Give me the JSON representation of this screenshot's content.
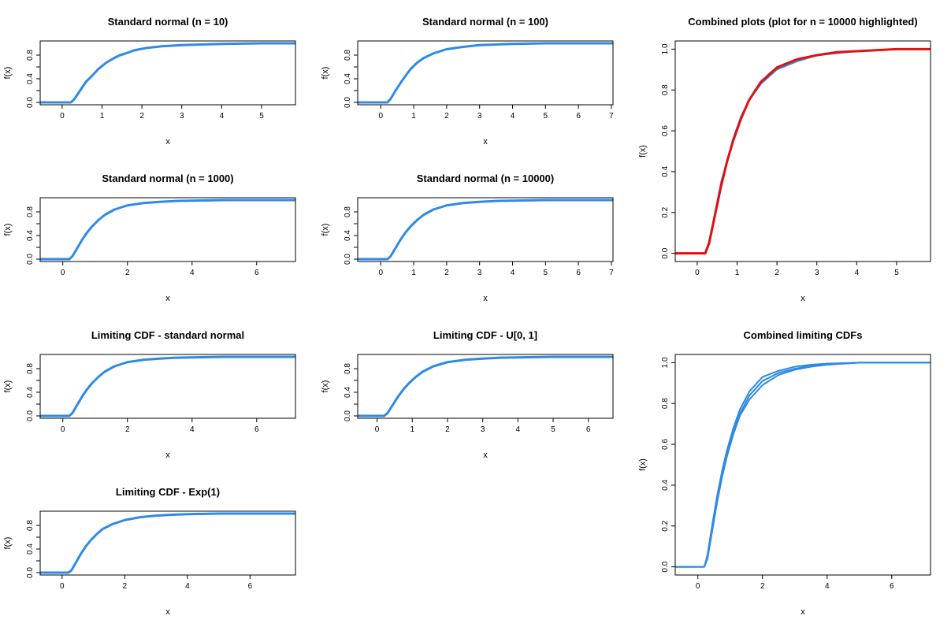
{
  "chart_data": [
    {
      "id": "p1",
      "type": "line",
      "title": "Standard normal (n = 10)",
      "xlabel": "x",
      "ylabel": "f(x)",
      "xlim": [
        -0.55,
        5.85
      ],
      "ylim": [
        -0.04,
        1.04
      ],
      "xticks": [
        0,
        1,
        2,
        3,
        4,
        5
      ],
      "yticks": [
        0.0,
        0.4,
        0.8
      ],
      "yminor": [
        0.2,
        0.6
      ],
      "series": [
        {
          "color": "#2e8ae6",
          "width": 3,
          "x": [
            -0.55,
            0.22,
            0.3,
            0.45,
            0.6,
            0.75,
            0.9,
            1.1,
            1.3,
            1.45,
            1.6,
            1.8,
            2.1,
            2.5,
            3.0,
            3.5,
            4.0,
            5.0,
            5.85
          ],
          "y": [
            0.0,
            0.0,
            0.05,
            0.2,
            0.35,
            0.45,
            0.56,
            0.67,
            0.75,
            0.8,
            0.83,
            0.88,
            0.92,
            0.95,
            0.97,
            0.98,
            0.99,
            1.0,
            1.0
          ]
        }
      ]
    },
    {
      "id": "p2",
      "type": "line",
      "title": "Standard normal (n = 100)",
      "xlabel": "x",
      "ylabel": "f(x)",
      "xlim": [
        -0.7,
        7.05
      ],
      "ylim": [
        -0.04,
        1.04
      ],
      "xticks": [
        0,
        1,
        2,
        3,
        4,
        5,
        6,
        7
      ],
      "yticks": [
        0.0,
        0.4,
        0.8
      ],
      "yminor": [
        0.2,
        0.6
      ],
      "series": [
        {
          "color": "#2e8ae6",
          "width": 3,
          "x": [
            -0.7,
            0.2,
            0.3,
            0.45,
            0.6,
            0.75,
            0.9,
            1.1,
            1.3,
            1.6,
            2.0,
            2.5,
            3.0,
            3.5,
            4.0,
            5.0,
            7.05
          ],
          "y": [
            0.0,
            0.0,
            0.06,
            0.2,
            0.33,
            0.45,
            0.56,
            0.67,
            0.75,
            0.83,
            0.9,
            0.94,
            0.97,
            0.98,
            0.99,
            1.0,
            1.0
          ]
        }
      ]
    },
    {
      "id": "p3",
      "type": "line",
      "title": "Combined plots (plot for n = 10000 highlighted)",
      "xlabel": "x",
      "ylabel": "f(x)",
      "xlim": [
        -0.55,
        5.85
      ],
      "ylim": [
        -0.04,
        1.04
      ],
      "xticks": [
        0,
        1,
        2,
        3,
        4,
        5
      ],
      "yticks": [
        0.0,
        0.2,
        0.4,
        0.6,
        0.8,
        1.0
      ],
      "yminor": [],
      "series": [
        {
          "color": "#2e8ae6",
          "width": 2,
          "x": [
            -0.55,
            0.22,
            0.3,
            0.45,
            0.6,
            0.75,
            0.9,
            1.1,
            1.3,
            1.45,
            1.6,
            1.8,
            2.1,
            2.5,
            3.0,
            3.5,
            4.0,
            5.0,
            5.85
          ],
          "y": [
            0.0,
            0.0,
            0.05,
            0.2,
            0.35,
            0.45,
            0.56,
            0.67,
            0.75,
            0.8,
            0.83,
            0.88,
            0.92,
            0.95,
            0.97,
            0.98,
            0.99,
            1.0,
            1.0
          ]
        },
        {
          "color": "#2e8ae6",
          "width": 2,
          "x": [
            -0.55,
            0.2,
            0.3,
            0.45,
            0.6,
            0.75,
            0.9,
            1.1,
            1.3,
            1.6,
            2.0,
            2.5,
            3.0,
            3.5,
            4.0,
            5.0,
            5.85
          ],
          "y": [
            0.0,
            0.0,
            0.06,
            0.2,
            0.33,
            0.45,
            0.56,
            0.67,
            0.75,
            0.83,
            0.9,
            0.94,
            0.97,
            0.98,
            0.99,
            1.0,
            1.0
          ]
        },
        {
          "color": "#2e8ae6",
          "width": 2,
          "x": [
            -0.55,
            0.2,
            0.3,
            0.45,
            0.6,
            0.75,
            0.9,
            1.1,
            1.3,
            1.6,
            2.0,
            2.5,
            3.0,
            3.5,
            4.0,
            5.0,
            5.85
          ],
          "y": [
            0.0,
            0.0,
            0.05,
            0.19,
            0.33,
            0.45,
            0.55,
            0.66,
            0.75,
            0.84,
            0.91,
            0.95,
            0.97,
            0.985,
            0.99,
            1.0,
            1.0
          ]
        },
        {
          "color": "#e01010",
          "width": 3,
          "x": [
            -0.55,
            0.2,
            0.3,
            0.45,
            0.6,
            0.75,
            0.9,
            1.1,
            1.3,
            1.6,
            2.0,
            2.5,
            3.0,
            3.5,
            4.0,
            5.0,
            5.85
          ],
          "y": [
            0.0,
            0.0,
            0.05,
            0.19,
            0.33,
            0.45,
            0.55,
            0.66,
            0.75,
            0.84,
            0.91,
            0.95,
            0.97,
            0.985,
            0.99,
            1.0,
            1.0
          ]
        }
      ]
    },
    {
      "id": "p4",
      "type": "line",
      "title": "Standard normal (n = 1000)",
      "xlabel": "x",
      "ylabel": "f(x)",
      "xlim": [
        -0.7,
        7.2
      ],
      "ylim": [
        -0.04,
        1.04
      ],
      "xticks": [
        0,
        2,
        4,
        6
      ],
      "yticks": [
        0.0,
        0.4,
        0.8
      ],
      "yminor": [
        0.2,
        0.6
      ],
      "series": [
        {
          "color": "#2e8ae6",
          "width": 3,
          "x": [
            -0.7,
            0.2,
            0.3,
            0.45,
            0.6,
            0.75,
            0.9,
            1.1,
            1.3,
            1.6,
            2.0,
            2.5,
            3.0,
            3.5,
            4.0,
            5.0,
            7.2
          ],
          "y": [
            0.0,
            0.0,
            0.05,
            0.19,
            0.33,
            0.45,
            0.55,
            0.66,
            0.75,
            0.84,
            0.91,
            0.95,
            0.97,
            0.985,
            0.99,
            1.0,
            1.0
          ]
        }
      ]
    },
    {
      "id": "p5",
      "type": "line",
      "title": "Standard normal (n = 10000)",
      "xlabel": "x",
      "ylabel": "f(x)",
      "xlim": [
        -0.7,
        7.05
      ],
      "ylim": [
        -0.04,
        1.04
      ],
      "xticks": [
        0,
        1,
        2,
        3,
        4,
        5,
        6,
        7
      ],
      "yticks": [
        0.0,
        0.4,
        0.8
      ],
      "yminor": [
        0.2,
        0.6
      ],
      "series": [
        {
          "color": "#2e8ae6",
          "width": 3,
          "x": [
            -0.7,
            0.2,
            0.3,
            0.45,
            0.6,
            0.75,
            0.9,
            1.1,
            1.3,
            1.6,
            2.0,
            2.5,
            3.0,
            3.5,
            4.0,
            5.0,
            7.05
          ],
          "y": [
            0.0,
            0.0,
            0.05,
            0.19,
            0.33,
            0.45,
            0.55,
            0.66,
            0.75,
            0.84,
            0.91,
            0.95,
            0.97,
            0.985,
            0.99,
            1.0,
            1.0
          ]
        }
      ]
    },
    {
      "id": "p6",
      "type": "line",
      "title": "Limiting CDF - standard normal",
      "xlabel": "x",
      "ylabel": "f(x)",
      "xlim": [
        -0.7,
        7.2
      ],
      "ylim": [
        -0.04,
        1.04
      ],
      "xticks": [
        0,
        2,
        4,
        6
      ],
      "yticks": [
        0.0,
        0.4,
        0.8
      ],
      "yminor": [
        0.2,
        0.6
      ],
      "series": [
        {
          "color": "#2e8ae6",
          "width": 3,
          "x": [
            -0.7,
            0.2,
            0.3,
            0.45,
            0.6,
            0.75,
            0.9,
            1.1,
            1.3,
            1.6,
            2.0,
            2.5,
            3.0,
            3.5,
            4.0,
            5.0,
            7.2
          ],
          "y": [
            0.0,
            0.0,
            0.05,
            0.19,
            0.33,
            0.45,
            0.55,
            0.66,
            0.75,
            0.84,
            0.91,
            0.95,
            0.97,
            0.985,
            0.99,
            1.0,
            1.0
          ]
        }
      ]
    },
    {
      "id": "p7",
      "type": "line",
      "title": "Limiting CDF - U[0, 1]",
      "xlabel": "x",
      "ylabel": "f(x)",
      "xlim": [
        -0.55,
        6.7
      ],
      "ylim": [
        -0.04,
        1.04
      ],
      "xticks": [
        0,
        1,
        2,
        3,
        4,
        5,
        6
      ],
      "yticks": [
        0.0,
        0.4,
        0.8
      ],
      "yminor": [
        0.2,
        0.6
      ],
      "series": [
        {
          "color": "#2e8ae6",
          "width": 3,
          "x": [
            -0.55,
            0.2,
            0.3,
            0.45,
            0.6,
            0.75,
            0.9,
            1.1,
            1.3,
            1.6,
            2.0,
            2.5,
            3.0,
            3.5,
            4.0,
            5.0,
            6.7
          ],
          "y": [
            0.0,
            0.0,
            0.05,
            0.19,
            0.33,
            0.45,
            0.55,
            0.66,
            0.75,
            0.84,
            0.91,
            0.95,
            0.97,
            0.985,
            0.99,
            1.0,
            1.0
          ]
        }
      ]
    },
    {
      "id": "p8",
      "type": "line",
      "title": "Combined limiting CDFs",
      "xlabel": "x",
      "ylabel": "f(x)",
      "xlim": [
        -0.7,
        7.2
      ],
      "ylim": [
        -0.04,
        1.04
      ],
      "xticks": [
        0,
        2,
        4,
        6
      ],
      "yticks": [
        0.0,
        0.2,
        0.4,
        0.6,
        0.8,
        1.0
      ],
      "yminor": [],
      "series": [
        {
          "color": "#2e8ae6",
          "width": 2,
          "x": [
            -0.7,
            0.2,
            0.3,
            0.45,
            0.6,
            0.75,
            0.9,
            1.1,
            1.3,
            1.6,
            2.0,
            2.5,
            3.0,
            3.5,
            4.0,
            5.0,
            7.2
          ],
          "y": [
            0.0,
            0.0,
            0.05,
            0.19,
            0.33,
            0.45,
            0.55,
            0.66,
            0.75,
            0.84,
            0.91,
            0.95,
            0.97,
            0.985,
            0.99,
            1.0,
            1.0
          ]
        },
        {
          "color": "#2e8ae6",
          "width": 2,
          "x": [
            -0.7,
            0.2,
            0.3,
            0.45,
            0.6,
            0.75,
            0.9,
            1.1,
            1.3,
            1.6,
            2.0,
            2.5,
            3.0,
            3.5,
            4.0,
            5.0,
            7.2
          ],
          "y": [
            0.0,
            0.0,
            0.06,
            0.21,
            0.35,
            0.47,
            0.57,
            0.68,
            0.77,
            0.86,
            0.93,
            0.96,
            0.98,
            0.99,
            0.995,
            1.0,
            1.0
          ]
        },
        {
          "color": "#2e8ae6",
          "width": 2,
          "x": [
            -0.7,
            0.2,
            0.3,
            0.45,
            0.6,
            0.75,
            0.9,
            1.1,
            1.3,
            1.6,
            2.0,
            2.5,
            3.0,
            3.5,
            4.0,
            5.0,
            7.2
          ],
          "y": [
            0.0,
            0.0,
            0.04,
            0.18,
            0.32,
            0.44,
            0.54,
            0.65,
            0.74,
            0.82,
            0.89,
            0.94,
            0.965,
            0.98,
            0.99,
            1.0,
            1.0
          ]
        }
      ]
    },
    {
      "id": "p9",
      "type": "line",
      "title": "Limiting CDF - Exp(1)",
      "xlabel": "x",
      "ylabel": "f(x)",
      "xlim": [
        -0.7,
        7.45
      ],
      "ylim": [
        -0.04,
        1.04
      ],
      "xticks": [
        0,
        2,
        4,
        6
      ],
      "yticks": [
        0.0,
        0.4,
        0.8
      ],
      "yminor": [
        0.2,
        0.6
      ],
      "series": [
        {
          "color": "#2e8ae6",
          "width": 3,
          "x": [
            -0.7,
            0.2,
            0.3,
            0.45,
            0.6,
            0.75,
            0.9,
            1.1,
            1.3,
            1.6,
            2.0,
            2.5,
            3.0,
            3.5,
            4.0,
            5.0,
            7.45
          ],
          "y": [
            0.0,
            0.0,
            0.04,
            0.18,
            0.32,
            0.44,
            0.54,
            0.65,
            0.74,
            0.82,
            0.89,
            0.94,
            0.965,
            0.98,
            0.99,
            1.0,
            1.0
          ]
        }
      ]
    }
  ]
}
